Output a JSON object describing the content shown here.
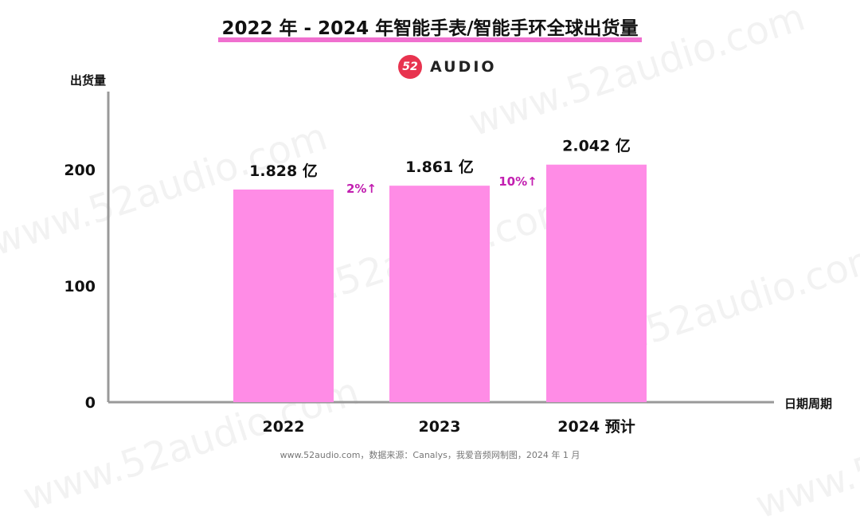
{
  "title": "2022 年 - 2024 年智能手表/智能手环全球出货量",
  "logo": {
    "mark": "52",
    "text": "AUDIO"
  },
  "watermark": "www.52audio.com",
  "source": "www.52audio.com，数据来源：Canalys，我爱音频网制图，2024 年 1 月",
  "colors": {
    "bar": "#ff8ce6",
    "growth": "#c21fb0",
    "title_highlight": "#f06fcf",
    "axis": "#999999"
  },
  "chart_data": {
    "type": "bar",
    "categories": [
      "2022",
      "2023",
      "2024 预计"
    ],
    "values": [
      182.8,
      186.1,
      204.2
    ],
    "data_labels": [
      "1.828 亿",
      "1.861 亿",
      "2.042 亿"
    ],
    "growth_labels": [
      "2%↑",
      "10%↑"
    ],
    "xlabel": "日期周期",
    "ylabel": "出货量",
    "ylim": [
      0,
      267
    ],
    "yticks": [
      0,
      100,
      200
    ],
    "grid": false,
    "legend": "none"
  }
}
